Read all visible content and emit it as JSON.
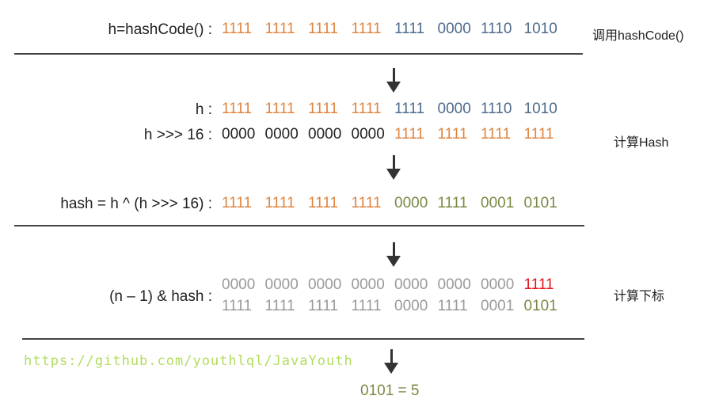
{
  "colors": {
    "orange": "#e0843f",
    "blue": "#4d6b8c",
    "olive": "#7a8a45",
    "grey": "#9a9a9a",
    "red": "#e8161c",
    "black": "#222222"
  },
  "rows": [
    {
      "label": "h=hashCode() :",
      "groups": [
        [
          "1111",
          "orange"
        ],
        [
          "1111",
          "orange"
        ],
        [
          "1111",
          "orange"
        ],
        [
          "1111",
          "orange"
        ],
        [
          "1111",
          "blue"
        ],
        [
          "0000",
          "blue"
        ],
        [
          "1110",
          "blue"
        ],
        [
          "1010",
          "blue"
        ]
      ]
    },
    {
      "label": "h :",
      "groups": [
        [
          "1111",
          "orange"
        ],
        [
          "1111",
          "orange"
        ],
        [
          "1111",
          "orange"
        ],
        [
          "1111",
          "orange"
        ],
        [
          "1111",
          "blue"
        ],
        [
          "0000",
          "blue"
        ],
        [
          "1110",
          "blue"
        ],
        [
          "1010",
          "blue"
        ]
      ]
    },
    {
      "label": "h >>> 16 :",
      "groups": [
        [
          "0000",
          "black"
        ],
        [
          "0000",
          "black"
        ],
        [
          "0000",
          "black"
        ],
        [
          "0000",
          "black"
        ],
        [
          "1111",
          "orange"
        ],
        [
          "1111",
          "orange"
        ],
        [
          "1111",
          "orange"
        ],
        [
          "1111",
          "orange"
        ]
      ]
    },
    {
      "label": "hash = h ^ (h >>> 16) :",
      "groups": [
        [
          "1111",
          "orange"
        ],
        [
          "1111",
          "orange"
        ],
        [
          "1111",
          "orange"
        ],
        [
          "1111",
          "orange"
        ],
        [
          "0000",
          "olive"
        ],
        [
          "1111",
          "olive"
        ],
        [
          "0001",
          "olive"
        ],
        [
          "0101",
          "olive"
        ]
      ]
    },
    {
      "label": "(n  –  1) & hash :",
      "groups": [
        [
          "0000",
          "grey"
        ],
        [
          "0000",
          "grey"
        ],
        [
          "0000",
          "grey"
        ],
        [
          "0000",
          "grey"
        ],
        [
          "0000",
          "grey"
        ],
        [
          "0000",
          "grey"
        ],
        [
          "0000",
          "grey"
        ],
        [
          "1111",
          "red"
        ]
      ]
    },
    {
      "label": "",
      "groups": [
        [
          "1111",
          "grey"
        ],
        [
          "1111",
          "grey"
        ],
        [
          "1111",
          "grey"
        ],
        [
          "1111",
          "grey"
        ],
        [
          "0000",
          "grey"
        ],
        [
          "1111",
          "grey"
        ],
        [
          "0001",
          "grey"
        ],
        [
          "0101",
          "olive"
        ]
      ]
    }
  ],
  "side_labels": [
    "调用hashCode()",
    "计算Hash",
    "计算下标"
  ],
  "result": "0101 = 5",
  "watermark": "https://github.com/youthlql/JavaYouth"
}
